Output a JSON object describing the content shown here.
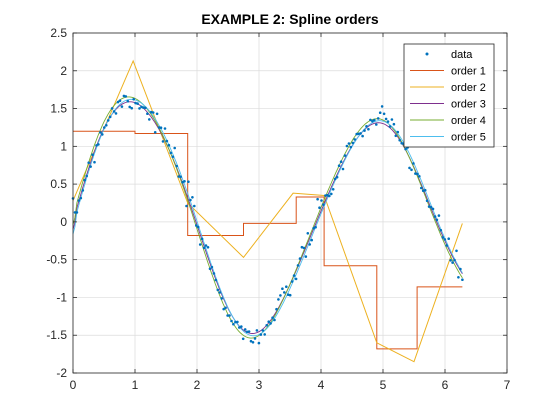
{
  "chart_data": {
    "type": "line",
    "title": "EXAMPLE 2: Spline orders",
    "xlim": [
      0,
      7
    ],
    "ylim": [
      -2,
      2.5
    ],
    "xticks": [
      0,
      1,
      2,
      3,
      4,
      5,
      6,
      7
    ],
    "yticks": [
      -2,
      -1.5,
      -1,
      -0.5,
      0,
      0.5,
      1,
      1.5,
      2,
      2.5
    ],
    "xtick_labels": [
      "0",
      "1",
      "2",
      "3",
      "4",
      "5",
      "6",
      "7"
    ],
    "ytick_labels": [
      "-2",
      "-1.5",
      "-1",
      "-0.5",
      "0",
      "0.5",
      "1",
      "1.5",
      "2",
      "2.5"
    ],
    "grid": true,
    "legend_position": "top-right",
    "series": [
      {
        "name": "data",
        "style": "points",
        "color": "#0072BD"
      },
      {
        "name": "order 1",
        "style": "step",
        "color": "#D95319"
      },
      {
        "name": "order 2",
        "style": "polyline",
        "color": "#EDB120"
      },
      {
        "name": "order 3",
        "style": "smooth",
        "color": "#7E2F8E"
      },
      {
        "name": "order 4",
        "style": "smooth",
        "color": "#77AC30"
      },
      {
        "name": "order 5",
        "style": "smooth",
        "color": "#4DBEEE"
      }
    ],
    "order1_steps": [
      {
        "x0": 0,
        "x1": 1.0,
        "y": 1.2
      },
      {
        "x0": 1.0,
        "x1": 1.85,
        "y": 1.17
      },
      {
        "x0": 1.85,
        "x1": 2.75,
        "y": -0.18
      },
      {
        "x0": 2.75,
        "x1": 3.6,
        "y": -0.02
      },
      {
        "x0": 3.6,
        "x1": 4.05,
        "y": 0.33
      },
      {
        "x0": 4.05,
        "x1": 4.9,
        "y": -0.58
      },
      {
        "x0": 4.9,
        "x1": 5.55,
        "y": -1.68
      },
      {
        "x0": 5.55,
        "x1": 6.28,
        "y": -0.86
      }
    ],
    "order2_points": [
      [
        0,
        0.28
      ],
      [
        0.97,
        2.13
      ],
      [
        1.85,
        0.25
      ],
      [
        2.75,
        -0.47
      ],
      [
        3.55,
        0.38
      ],
      [
        4.05,
        0.35
      ],
      [
        4.9,
        -1.6
      ],
      [
        5.5,
        -1.85
      ],
      [
        6.28,
        -0.02
      ]
    ]
  }
}
